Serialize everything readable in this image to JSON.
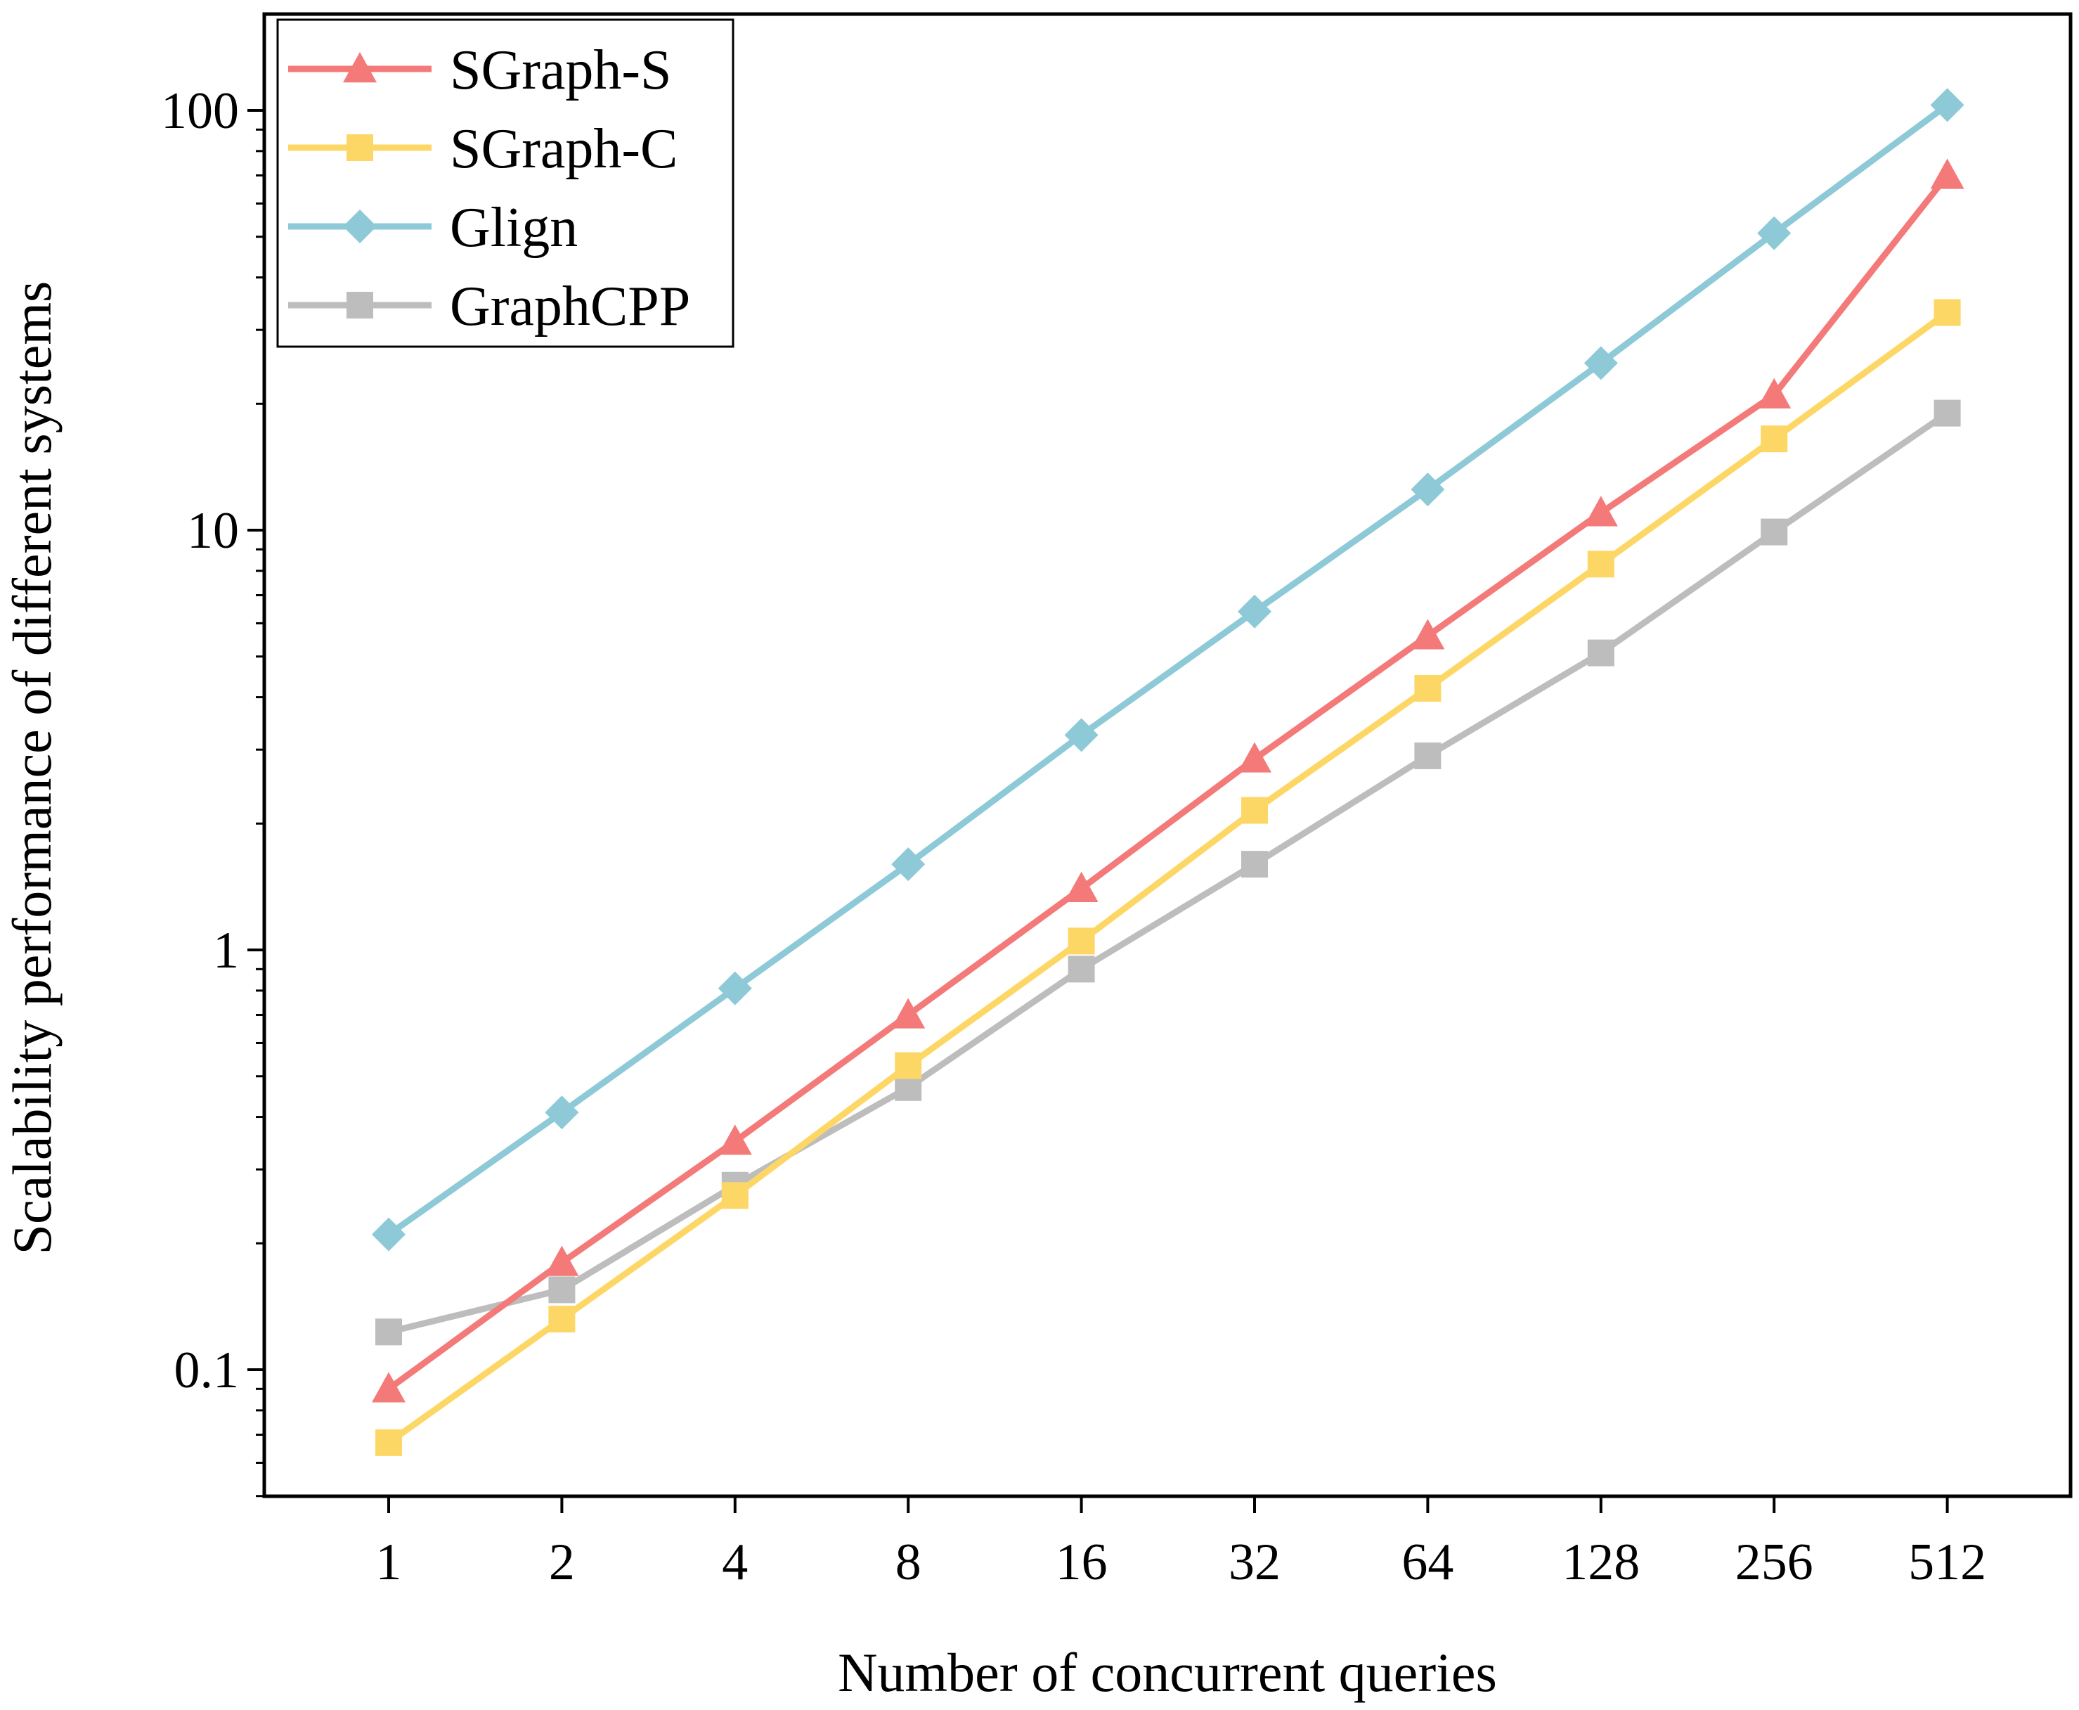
{
  "chart_data": {
    "type": "line",
    "xlabel": "Number of concurrent queries",
    "ylabel": "Scalability performance of different systems",
    "x_scale": "log2 (categorical, evenly spaced)",
    "y_scale": "log10",
    "categories": [
      "1",
      "2",
      "4",
      "8",
      "16",
      "32",
      "64",
      "128",
      "256",
      "512"
    ],
    "ylim": [
      0.05,
      180
    ],
    "y_ticks": [
      {
        "value": 0.1,
        "label": "0.1"
      },
      {
        "value": 1,
        "label": "1"
      },
      {
        "value": 10,
        "label": "10"
      },
      {
        "value": 100,
        "label": "100"
      }
    ],
    "grid": false,
    "legend_position": "top-left",
    "series": [
      {
        "name": "SGraph-S",
        "color": "#F47A7A",
        "marker": "triangle",
        "values": [
          0.09,
          0.18,
          0.35,
          0.7,
          1.4,
          2.85,
          5.6,
          11,
          21,
          70
        ]
      },
      {
        "name": "SGraph-C",
        "color": "#FDD766",
        "marker": "square",
        "values": [
          0.067,
          0.132,
          0.26,
          0.53,
          1.05,
          2.15,
          4.2,
          8.3,
          16.5,
          33
        ]
      },
      {
        "name": "Glign",
        "color": "#8DC9D6",
        "marker": "diamond",
        "values": [
          0.21,
          0.41,
          0.81,
          1.6,
          3.25,
          6.4,
          12.5,
          25,
          51,
          103
        ]
      },
      {
        "name": "GraphCPP",
        "color": "#BDBDBD",
        "marker": "square",
        "values": [
          0.123,
          0.155,
          0.275,
          0.47,
          0.9,
          1.6,
          2.9,
          5.1,
          9.9,
          19
        ]
      }
    ]
  }
}
